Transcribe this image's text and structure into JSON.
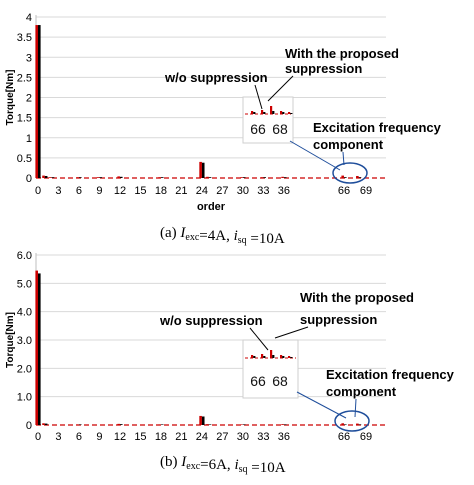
{
  "chart_data": [
    {
      "id": "a",
      "type": "bar",
      "ylabel": "Torque[Nm]",
      "xlabel": "order",
      "ylim": [
        0,
        4.0
      ],
      "yticks": [
        "0",
        "0.5",
        "1",
        "1.5",
        "2",
        "2.5",
        "3",
        "3.5",
        "4"
      ],
      "ytick_values": [
        0,
        0.5,
        1.0,
        1.5,
        2.0,
        2.5,
        3.0,
        3.5,
        4.0
      ],
      "xticks": [
        "0",
        "3",
        "6",
        "9",
        "12",
        "15",
        "18",
        "21",
        "24",
        "27",
        "30",
        "33",
        "36",
        "",
        "66",
        "69"
      ],
      "grid": true,
      "colors": {
        "wo": "#cc0000",
        "proposed": "#000000"
      },
      "bars": [
        {
          "order": 0,
          "wo": 3.8,
          "proposed": 3.8
        },
        {
          "order": 1,
          "wo": 0.06,
          "proposed": 0.05
        },
        {
          "order": 2,
          "wo": 0.02,
          "proposed": 0.02
        },
        {
          "order": 6,
          "wo": 0.02,
          "proposed": 0.02
        },
        {
          "order": 9,
          "wo": 0.02,
          "proposed": 0.02
        },
        {
          "order": 12,
          "wo": 0.04,
          "proposed": 0.03
        },
        {
          "order": 18,
          "wo": 0.02,
          "proposed": 0.02
        },
        {
          "order": 24,
          "wo": 0.4,
          "proposed": 0.38
        },
        {
          "order": 25,
          "wo": 0.03,
          "proposed": 0.02
        },
        {
          "order": 30,
          "wo": 0.02,
          "proposed": 0.02
        },
        {
          "order": 33,
          "wo": 0.02,
          "proposed": 0.02
        },
        {
          "order": 36,
          "wo": 0.03,
          "proposed": 0.02
        },
        {
          "order": 66,
          "wo": 0.06,
          "proposed": 0.02
        },
        {
          "order": 68,
          "wo": 0.05,
          "proposed": 0.02
        }
      ],
      "annotations": {
        "wo": "w/o suppression",
        "proposed_1": "With the proposed",
        "proposed_2": "suppression",
        "excitation_1": "Excitation frequency",
        "excitation_2": "component",
        "inset_left": "66",
        "inset_right": "68"
      },
      "caption": {
        "prefix": "(a)",
        "i_exc": "I",
        "exc_sub": "exc",
        "exc_val": "=4A,",
        "i_sq": "i",
        "sq_sub": "sq",
        "sq_val": "=10A"
      }
    },
    {
      "id": "b",
      "type": "bar",
      "ylabel": "Torque[Nm]",
      "xlabel": "order",
      "ylim": [
        0,
        6.0
      ],
      "yticks": [
        "0",
        "1.0",
        "2.0",
        "3.0",
        "4.0",
        "5.0",
        "6.0"
      ],
      "ytick_values": [
        0,
        1.0,
        2.0,
        3.0,
        4.0,
        5.0,
        6.0
      ],
      "xticks": [
        "0",
        "3",
        "6",
        "9",
        "12",
        "15",
        "18",
        "21",
        "24",
        "27",
        "30",
        "33",
        "36",
        "",
        "66",
        "69"
      ],
      "grid": true,
      "colors": {
        "wo": "#cc0000",
        "proposed": "#000000"
      },
      "bars": [
        {
          "order": 0,
          "wo": 5.45,
          "proposed": 5.35
        },
        {
          "order": 1,
          "wo": 0.06,
          "proposed": 0.05
        },
        {
          "order": 6,
          "wo": 0.02,
          "proposed": 0.02
        },
        {
          "order": 12,
          "wo": 0.04,
          "proposed": 0.03
        },
        {
          "order": 18,
          "wo": 0.02,
          "proposed": 0.02
        },
        {
          "order": 24,
          "wo": 0.32,
          "proposed": 0.3
        },
        {
          "order": 25,
          "wo": 0.03,
          "proposed": 0.02
        },
        {
          "order": 30,
          "wo": 0.02,
          "proposed": 0.02
        },
        {
          "order": 36,
          "wo": 0.03,
          "proposed": 0.02
        },
        {
          "order": 66,
          "wo": 0.06,
          "proposed": 0.02
        },
        {
          "order": 68,
          "wo": 0.05,
          "proposed": 0.02
        }
      ],
      "annotations": {
        "wo": "w/o suppression",
        "proposed_1": "With the proposed",
        "proposed_2": "suppression",
        "excitation_1": "Excitation frequency",
        "excitation_2": "component",
        "inset_left": "66",
        "inset_right": "68"
      },
      "caption": {
        "prefix": "(b)",
        "i_exc": "I",
        "exc_sub": "exc",
        "exc_val": "=6A,",
        "i_sq": "i",
        "sq_sub": "sq",
        "sq_val": "=10A"
      }
    }
  ]
}
